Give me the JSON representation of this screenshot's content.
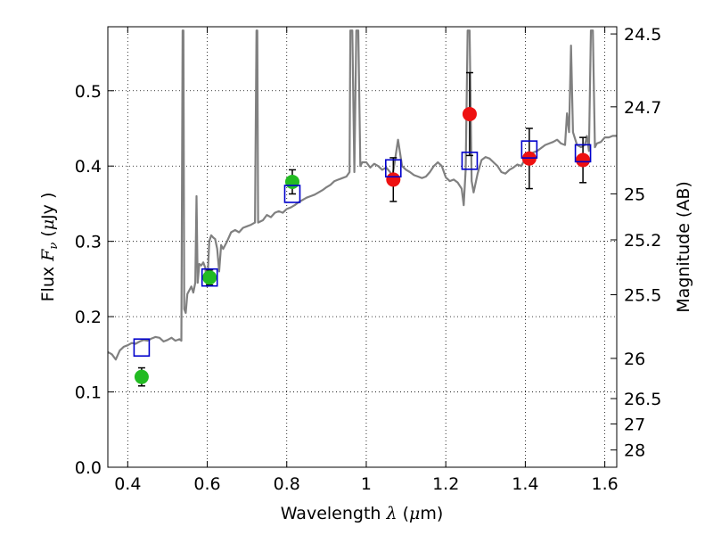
{
  "chart_data": {
    "type": "scatter",
    "xlabel": {
      "prefix": "Wavelength  ",
      "symbol": "λ",
      "suffix": " (",
      "unit_symbol": "μ",
      "unit": "m)"
    },
    "ylabel": {
      "prefix": "Flux  ",
      "symbol": "F",
      "subscript": "ν",
      "suffix": "  (",
      "unit_symbol": "μ",
      "unit": "Jy )"
    },
    "y2label": "Magnitude (AB)",
    "xlim": [
      0.35,
      1.63
    ],
    "ylim": [
      0.0,
      0.585
    ],
    "grid": true,
    "xticks": [
      {
        "value": 0.4,
        "label": "0.4"
      },
      {
        "value": 0.6,
        "label": "0.6"
      },
      {
        "value": 0.8,
        "label": "0.8"
      },
      {
        "value": 1.0,
        "label": "1"
      },
      {
        "value": 1.2,
        "label": "1.2"
      },
      {
        "value": 1.4,
        "label": "1.4"
      },
      {
        "value": 1.6,
        "label": "1.6"
      }
    ],
    "yticks": [
      {
        "value": 0.0,
        "label": "0.0"
      },
      {
        "value": 0.1,
        "label": "0.1"
      },
      {
        "value": 0.2,
        "label": "0.2"
      },
      {
        "value": 0.3,
        "label": "0.3"
      },
      {
        "value": 0.4,
        "label": "0.4"
      },
      {
        "value": 0.5,
        "label": "0.5"
      }
    ],
    "y2ticks": [
      {
        "mag": 24.5,
        "label": "24.5"
      },
      {
        "mag": 24.7,
        "label": "24.7"
      },
      {
        "mag": 25,
        "label": "25"
      },
      {
        "mag": 25.2,
        "label": "25.2"
      },
      {
        "mag": 25.5,
        "label": "25.5"
      },
      {
        "mag": 26,
        "label": "26"
      },
      {
        "mag": 26.5,
        "label": "26.5"
      },
      {
        "mag": 27,
        "label": "27"
      },
      {
        "mag": 28,
        "label": "28"
      }
    ],
    "colors": {
      "model": "#808080",
      "green_points": "#22bb22",
      "red_points": "#ee1111",
      "model_boxes": "#0000cc",
      "errorbar": "#000000"
    },
    "series": [
      {
        "kind": "model-spectrum",
        "points": [
          [
            0.35,
            0.153
          ],
          [
            0.36,
            0.15
          ],
          [
            0.37,
            0.143
          ],
          [
            0.38,
            0.155
          ],
          [
            0.39,
            0.16
          ],
          [
            0.4,
            0.162
          ],
          [
            0.41,
            0.165
          ],
          [
            0.42,
            0.164
          ],
          [
            0.43,
            0.167
          ],
          [
            0.44,
            0.169
          ],
          [
            0.45,
            0.168
          ],
          [
            0.46,
            0.171
          ],
          [
            0.47,
            0.173
          ],
          [
            0.48,
            0.172
          ],
          [
            0.49,
            0.167
          ],
          [
            0.5,
            0.169
          ],
          [
            0.51,
            0.172
          ],
          [
            0.52,
            0.168
          ],
          [
            0.53,
            0.17
          ],
          [
            0.535,
            0.168
          ],
          [
            0.538,
            0.58
          ],
          [
            0.54,
            0.58
          ],
          [
            0.542,
            0.21
          ],
          [
            0.546,
            0.205
          ],
          [
            0.55,
            0.23
          ],
          [
            0.555,
            0.235
          ],
          [
            0.56,
            0.24
          ],
          [
            0.565,
            0.232
          ],
          [
            0.57,
            0.245
          ],
          [
            0.573,
            0.36
          ],
          [
            0.576,
            0.245
          ],
          [
            0.58,
            0.27
          ],
          [
            0.585,
            0.268
          ],
          [
            0.59,
            0.272
          ],
          [
            0.595,
            0.265
          ],
          [
            0.6,
            0.24
          ],
          [
            0.605,
            0.3
          ],
          [
            0.61,
            0.308
          ],
          [
            0.615,
            0.305
          ],
          [
            0.62,
            0.303
          ],
          [
            0.625,
            0.29
          ],
          [
            0.63,
            0.26
          ],
          [
            0.635,
            0.295
          ],
          [
            0.64,
            0.29
          ],
          [
            0.65,
            0.3
          ],
          [
            0.66,
            0.312
          ],
          [
            0.67,
            0.315
          ],
          [
            0.68,
            0.312
          ],
          [
            0.69,
            0.318
          ],
          [
            0.7,
            0.32
          ],
          [
            0.71,
            0.322
          ],
          [
            0.72,
            0.325
          ],
          [
            0.724,
            0.58
          ],
          [
            0.726,
            0.58
          ],
          [
            0.728,
            0.325
          ],
          [
            0.74,
            0.328
          ],
          [
            0.75,
            0.335
          ],
          [
            0.76,
            0.332
          ],
          [
            0.77,
            0.338
          ],
          [
            0.78,
            0.34
          ],
          [
            0.79,
            0.338
          ],
          [
            0.8,
            0.343
          ],
          [
            0.81,
            0.345
          ],
          [
            0.82,
            0.348
          ],
          [
            0.83,
            0.352
          ],
          [
            0.84,
            0.355
          ],
          [
            0.85,
            0.358
          ],
          [
            0.86,
            0.36
          ],
          [
            0.87,
            0.362
          ],
          [
            0.88,
            0.365
          ],
          [
            0.89,
            0.368
          ],
          [
            0.9,
            0.372
          ],
          [
            0.91,
            0.375
          ],
          [
            0.92,
            0.38
          ],
          [
            0.93,
            0.382
          ],
          [
            0.94,
            0.384
          ],
          [
            0.95,
            0.386
          ],
          [
            0.958,
            0.392
          ],
          [
            0.96,
            0.58
          ],
          [
            0.965,
            0.58
          ],
          [
            0.97,
            0.392
          ],
          [
            0.975,
            0.58
          ],
          [
            0.98,
            0.58
          ],
          [
            0.985,
            0.4
          ],
          [
            0.99,
            0.405
          ],
          [
            1.0,
            0.405
          ],
          [
            1.01,
            0.398
          ],
          [
            1.02,
            0.403
          ],
          [
            1.03,
            0.4
          ],
          [
            1.04,
            0.395
          ],
          [
            1.05,
            0.398
          ],
          [
            1.06,
            0.392
          ],
          [
            1.065,
            0.385
          ],
          [
            1.07,
            0.4
          ],
          [
            1.08,
            0.435
          ],
          [
            1.09,
            0.4
          ],
          [
            1.1,
            0.395
          ],
          [
            1.11,
            0.392
          ],
          [
            1.12,
            0.388
          ],
          [
            1.13,
            0.386
          ],
          [
            1.14,
            0.384
          ],
          [
            1.15,
            0.386
          ],
          [
            1.16,
            0.392
          ],
          [
            1.17,
            0.4
          ],
          [
            1.18,
            0.405
          ],
          [
            1.19,
            0.4
          ],
          [
            1.2,
            0.385
          ],
          [
            1.21,
            0.38
          ],
          [
            1.22,
            0.382
          ],
          [
            1.23,
            0.378
          ],
          [
            1.24,
            0.37
          ],
          [
            1.245,
            0.348
          ],
          [
            1.25,
            0.395
          ],
          [
            1.255,
            0.58
          ],
          [
            1.26,
            0.58
          ],
          [
            1.265,
            0.38
          ],
          [
            1.27,
            0.365
          ],
          [
            1.28,
            0.39
          ],
          [
            1.29,
            0.408
          ],
          [
            1.3,
            0.412
          ],
          [
            1.31,
            0.41
          ],
          [
            1.32,
            0.405
          ],
          [
            1.33,
            0.4
          ],
          [
            1.34,
            0.392
          ],
          [
            1.35,
            0.39
          ],
          [
            1.36,
            0.395
          ],
          [
            1.37,
            0.398
          ],
          [
            1.38,
            0.402
          ],
          [
            1.39,
            0.4
          ],
          [
            1.4,
            0.41
          ],
          [
            1.41,
            0.415
          ],
          [
            1.42,
            0.418
          ],
          [
            1.43,
            0.42
          ],
          [
            1.44,
            0.424
          ],
          [
            1.45,
            0.428
          ],
          [
            1.46,
            0.43
          ],
          [
            1.47,
            0.432
          ],
          [
            1.48,
            0.435
          ],
          [
            1.49,
            0.43
          ],
          [
            1.5,
            0.428
          ],
          [
            1.505,
            0.47
          ],
          [
            1.51,
            0.445
          ],
          [
            1.515,
            0.56
          ],
          [
            1.52,
            0.445
          ],
          [
            1.53,
            0.428
          ],
          [
            1.54,
            0.425
          ],
          [
            1.55,
            0.428
          ],
          [
            1.555,
            0.44
          ],
          [
            1.56,
            0.42
          ],
          [
            1.565,
            0.58
          ],
          [
            1.57,
            0.58
          ],
          [
            1.575,
            0.425
          ],
          [
            1.58,
            0.43
          ],
          [
            1.59,
            0.432
          ],
          [
            1.6,
            0.438
          ],
          [
            1.61,
            0.438
          ],
          [
            1.62,
            0.44
          ],
          [
            1.63,
            0.44
          ]
        ]
      },
      {
        "kind": "observed-green",
        "points": [
          {
            "x": 0.435,
            "y": 0.12,
            "yerr": 0.012
          },
          {
            "x": 0.606,
            "y": 0.252,
            "yerr": 0.01
          },
          {
            "x": 0.814,
            "y": 0.379,
            "yerr": 0.016
          }
        ]
      },
      {
        "kind": "observed-red",
        "points": [
          {
            "x": 1.068,
            "y": 0.382,
            "yerr": 0.029
          },
          {
            "x": 1.26,
            "y": 0.469,
            "yerr": 0.055
          },
          {
            "x": 1.41,
            "y": 0.41,
            "yerr": 0.04
          },
          {
            "x": 1.545,
            "y": 0.408,
            "yerr": 0.03
          }
        ]
      },
      {
        "kind": "model-photometry",
        "points": [
          {
            "x": 0.435,
            "y": 0.159
          },
          {
            "x": 0.606,
            "y": 0.252
          },
          {
            "x": 0.814,
            "y": 0.363
          },
          {
            "x": 1.068,
            "y": 0.397
          },
          {
            "x": 1.26,
            "y": 0.407
          },
          {
            "x": 1.41,
            "y": 0.422
          },
          {
            "x": 1.545,
            "y": 0.417
          }
        ]
      }
    ]
  }
}
